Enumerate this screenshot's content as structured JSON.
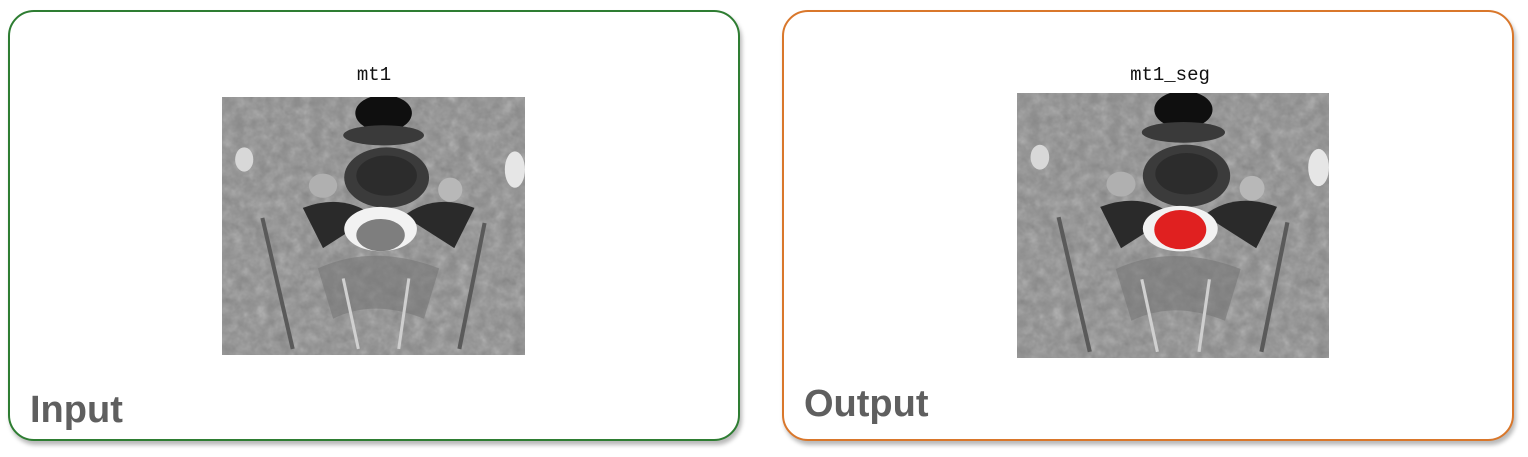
{
  "input_panel": {
    "image_title": "mt1",
    "caption": "Input",
    "border_color": "#2e7d32"
  },
  "output_panel": {
    "image_title": "mt1_seg",
    "caption": "Output",
    "border_color": "#d9772b",
    "segmentation_color": "#e02020"
  }
}
